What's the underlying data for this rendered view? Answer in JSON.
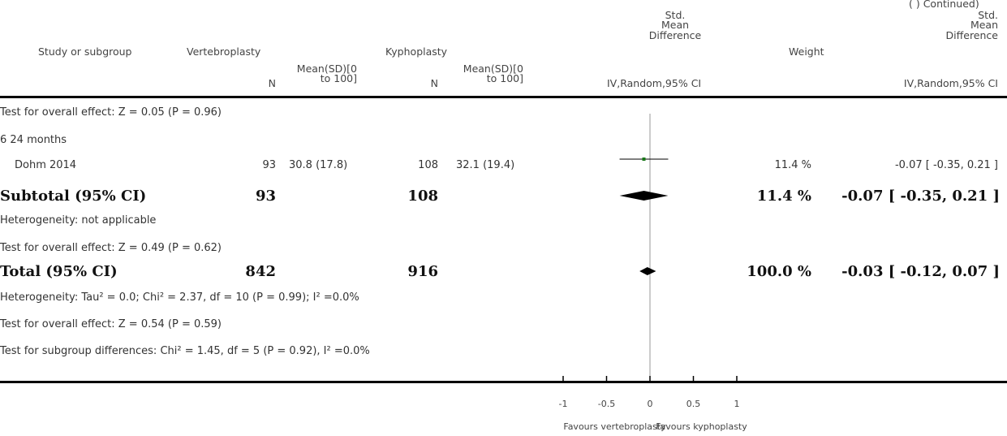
{
  "corner_note": "(  )  Continued)",
  "headers": {
    "study": "Study or subgroup",
    "group1": "Vertebroplasty",
    "group2": "Kyphoplasty",
    "smd_top": [
      "Std.",
      "Mean",
      "Difference"
    ],
    "weight": "Weight",
    "smd_right": [
      "Std.",
      "Mean",
      "Difference"
    ],
    "n": "N",
    "meansd": [
      "Mean(SD)[0",
      "to 100]"
    ],
    "method": "IV,Random,95% CI"
  },
  "rows": {
    "overall_prev": "Test for overall effect: Z = 0.05 (P = 0.96)",
    "subgroup": "6 24 months",
    "study": {
      "name": "Dohm 2014",
      "n1": "93",
      "msd1": "30.8 (17.8)",
      "n2": "108",
      "msd2": "32.1 (19.4)",
      "weight": "11.4 %",
      "ci": "-0.07 [ -0.35, 0.21 ]"
    },
    "subtotal": {
      "label": "Subtotal (95% CI)",
      "n1": "93",
      "n2": "108",
      "weight": "11.4 %",
      "ci": "-0.07 [ -0.35, 0.21 ]"
    },
    "heterogeneity_sub": "Heterogeneity: not applicable",
    "overall_sub": "Test for overall effect: Z = 0.49 (P = 0.62)",
    "total": {
      "label": "Total (95% CI)",
      "n1": "842",
      "n2": "916",
      "weight": "100.0 %",
      "ci": "-0.03 [ -0.12, 0.07 ]"
    },
    "heterogeneity_total": "Heterogeneity: Tau² = 0.0; Chi² = 2.37, df = 10 (P = 0.99); I² =0.0%",
    "overall_total": "Test for overall effect: Z = 0.54 (P = 0.59)",
    "subgroup_diff": "Test for subgroup differences: Chi² = 1.45, df = 5 (P = 0.92), I² =0.0%"
  },
  "chart_data": {
    "type": "forest",
    "xlim": [
      -1,
      1
    ],
    "ticks": [
      -1,
      -0.5,
      0,
      0.5,
      1
    ],
    "tick_labels": [
      "-1",
      "-0.5",
      "0",
      "0.5",
      "1"
    ],
    "favours_left": "Favours vertebroplasty",
    "favours_right": "Favours kyphoplasty",
    "studies": [
      {
        "name": "Dohm 2014",
        "estimate": -0.07,
        "ci_low": -0.35,
        "ci_high": 0.21,
        "weight": 11.4
      }
    ],
    "diamonds": [
      {
        "name": "Subtotal (95% CI)",
        "estimate": -0.07,
        "ci_low": -0.35,
        "ci_high": 0.21
      },
      {
        "name": "Total (95% CI)",
        "estimate": -0.03,
        "ci_low": -0.12,
        "ci_high": 0.07
      }
    ],
    "colors": {
      "study_marker": "#1a7a1a",
      "diamond": "#000000",
      "axis": "#000000",
      "null_line": "#999999"
    }
  }
}
